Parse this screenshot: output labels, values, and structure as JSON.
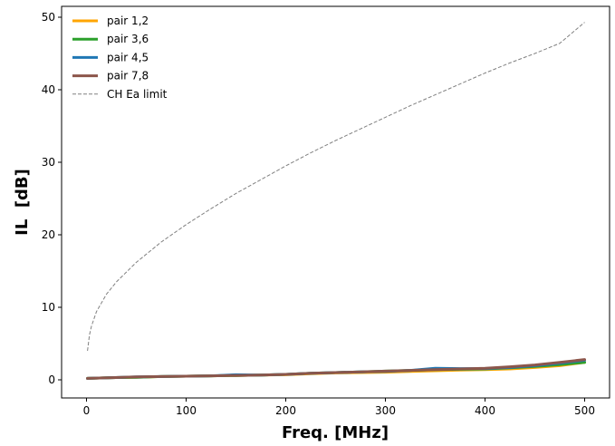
{
  "chart_data": {
    "type": "line",
    "title": "",
    "xlabel": "Freq. [MHz]",
    "ylabel": "IL  [dB]",
    "xlim": [
      -25,
      525
    ],
    "ylim": [
      -2.5,
      51.5
    ],
    "xticks": [
      0,
      100,
      200,
      300,
      400,
      500
    ],
    "yticks": [
      0,
      10,
      20,
      30,
      40,
      50
    ],
    "grid": false,
    "legend_position": "top-left",
    "series": [
      {
        "name": "pair 1,2",
        "color": "#ffa500",
        "style": "solid",
        "x": [
          1,
          25,
          50,
          75,
          100,
          125,
          150,
          175,
          200,
          225,
          250,
          275,
          300,
          325,
          350,
          375,
          400,
          425,
          450,
          475,
          500
        ],
        "y": [
          0.2,
          0.3,
          0.35,
          0.45,
          0.5,
          0.55,
          0.6,
          0.65,
          0.7,
          0.85,
          0.95,
          1.0,
          1.05,
          1.15,
          1.25,
          1.35,
          1.4,
          1.5,
          1.7,
          1.95,
          2.4
        ]
      },
      {
        "name": "pair 3,6",
        "color": "#2ca02c",
        "style": "solid",
        "x": [
          1,
          25,
          50,
          75,
          100,
          125,
          150,
          175,
          200,
          225,
          250,
          275,
          300,
          325,
          350,
          375,
          400,
          425,
          450,
          475,
          500
        ],
        "y": [
          0.2,
          0.3,
          0.35,
          0.45,
          0.5,
          0.55,
          0.6,
          0.65,
          0.75,
          0.9,
          1.0,
          1.1,
          1.2,
          1.3,
          1.4,
          1.45,
          1.5,
          1.65,
          1.85,
          2.1,
          2.4
        ]
      },
      {
        "name": "pair 4,5",
        "color": "#1f77b4",
        "style": "solid",
        "x": [
          1,
          25,
          50,
          75,
          100,
          125,
          150,
          175,
          200,
          225,
          250,
          275,
          300,
          325,
          350,
          375,
          400,
          425,
          450,
          475,
          500
        ],
        "y": [
          0.2,
          0.3,
          0.4,
          0.45,
          0.5,
          0.55,
          0.7,
          0.65,
          0.75,
          0.9,
          1.0,
          1.1,
          1.15,
          1.3,
          1.6,
          1.55,
          1.55,
          1.7,
          1.95,
          2.3,
          2.7
        ]
      },
      {
        "name": "pair 7,8",
        "color": "#8c564b",
        "style": "solid",
        "x": [
          1,
          25,
          50,
          75,
          100,
          125,
          150,
          175,
          200,
          225,
          250,
          275,
          300,
          325,
          350,
          375,
          400,
          425,
          450,
          475,
          500
        ],
        "y": [
          0.2,
          0.3,
          0.4,
          0.45,
          0.5,
          0.55,
          0.6,
          0.65,
          0.75,
          0.9,
          1.0,
          1.1,
          1.2,
          1.3,
          1.4,
          1.5,
          1.6,
          1.8,
          2.05,
          2.4,
          2.8
        ]
      },
      {
        "name": "CH Ea limit",
        "color": "#808080",
        "style": "dashed",
        "x": [
          1,
          3,
          5,
          10,
          20,
          30,
          50,
          75,
          100,
          125,
          150,
          175,
          200,
          225,
          250,
          275,
          300,
          325,
          350,
          375,
          400,
          425,
          450,
          475,
          500
        ],
        "y": [
          4.0,
          6.2,
          7.4,
          9.4,
          11.8,
          13.5,
          16.2,
          19.0,
          21.4,
          23.6,
          25.7,
          27.6,
          29.5,
          31.3,
          33.0,
          34.6,
          36.2,
          37.8,
          39.3,
          40.8,
          42.3,
          43.7,
          45.0,
          46.4,
          49.3
        ]
      }
    ]
  }
}
